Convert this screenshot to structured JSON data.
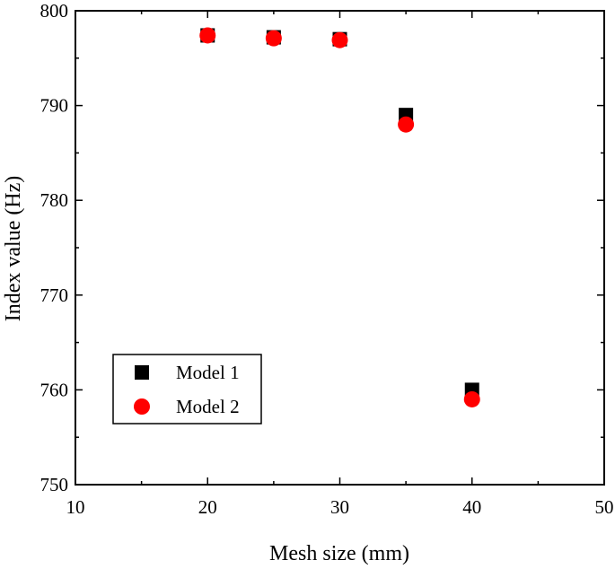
{
  "chart_data": {
    "type": "scatter",
    "title": "",
    "xlabel": "Mesh size (mm)",
    "ylabel": "Index value (Hz)",
    "xlim": [
      10,
      50
    ],
    "ylim": [
      750,
      800
    ],
    "xticks": [
      10,
      20,
      30,
      40,
      50
    ],
    "yticks": [
      750,
      760,
      770,
      780,
      790,
      800
    ],
    "grid": false,
    "legend_position": "bottom-left",
    "series": [
      {
        "name": "Model 1",
        "marker": "square",
        "color": "#000000",
        "x": [
          20,
          25,
          30,
          35,
          40
        ],
        "y": [
          797.4,
          797.2,
          797.0,
          789.0,
          760.0
        ]
      },
      {
        "name": "Model 2",
        "marker": "circle",
        "color": "#ff0000",
        "x": [
          20,
          25,
          30,
          35,
          40
        ],
        "y": [
          797.4,
          797.1,
          796.9,
          788.0,
          759.0
        ]
      }
    ]
  }
}
